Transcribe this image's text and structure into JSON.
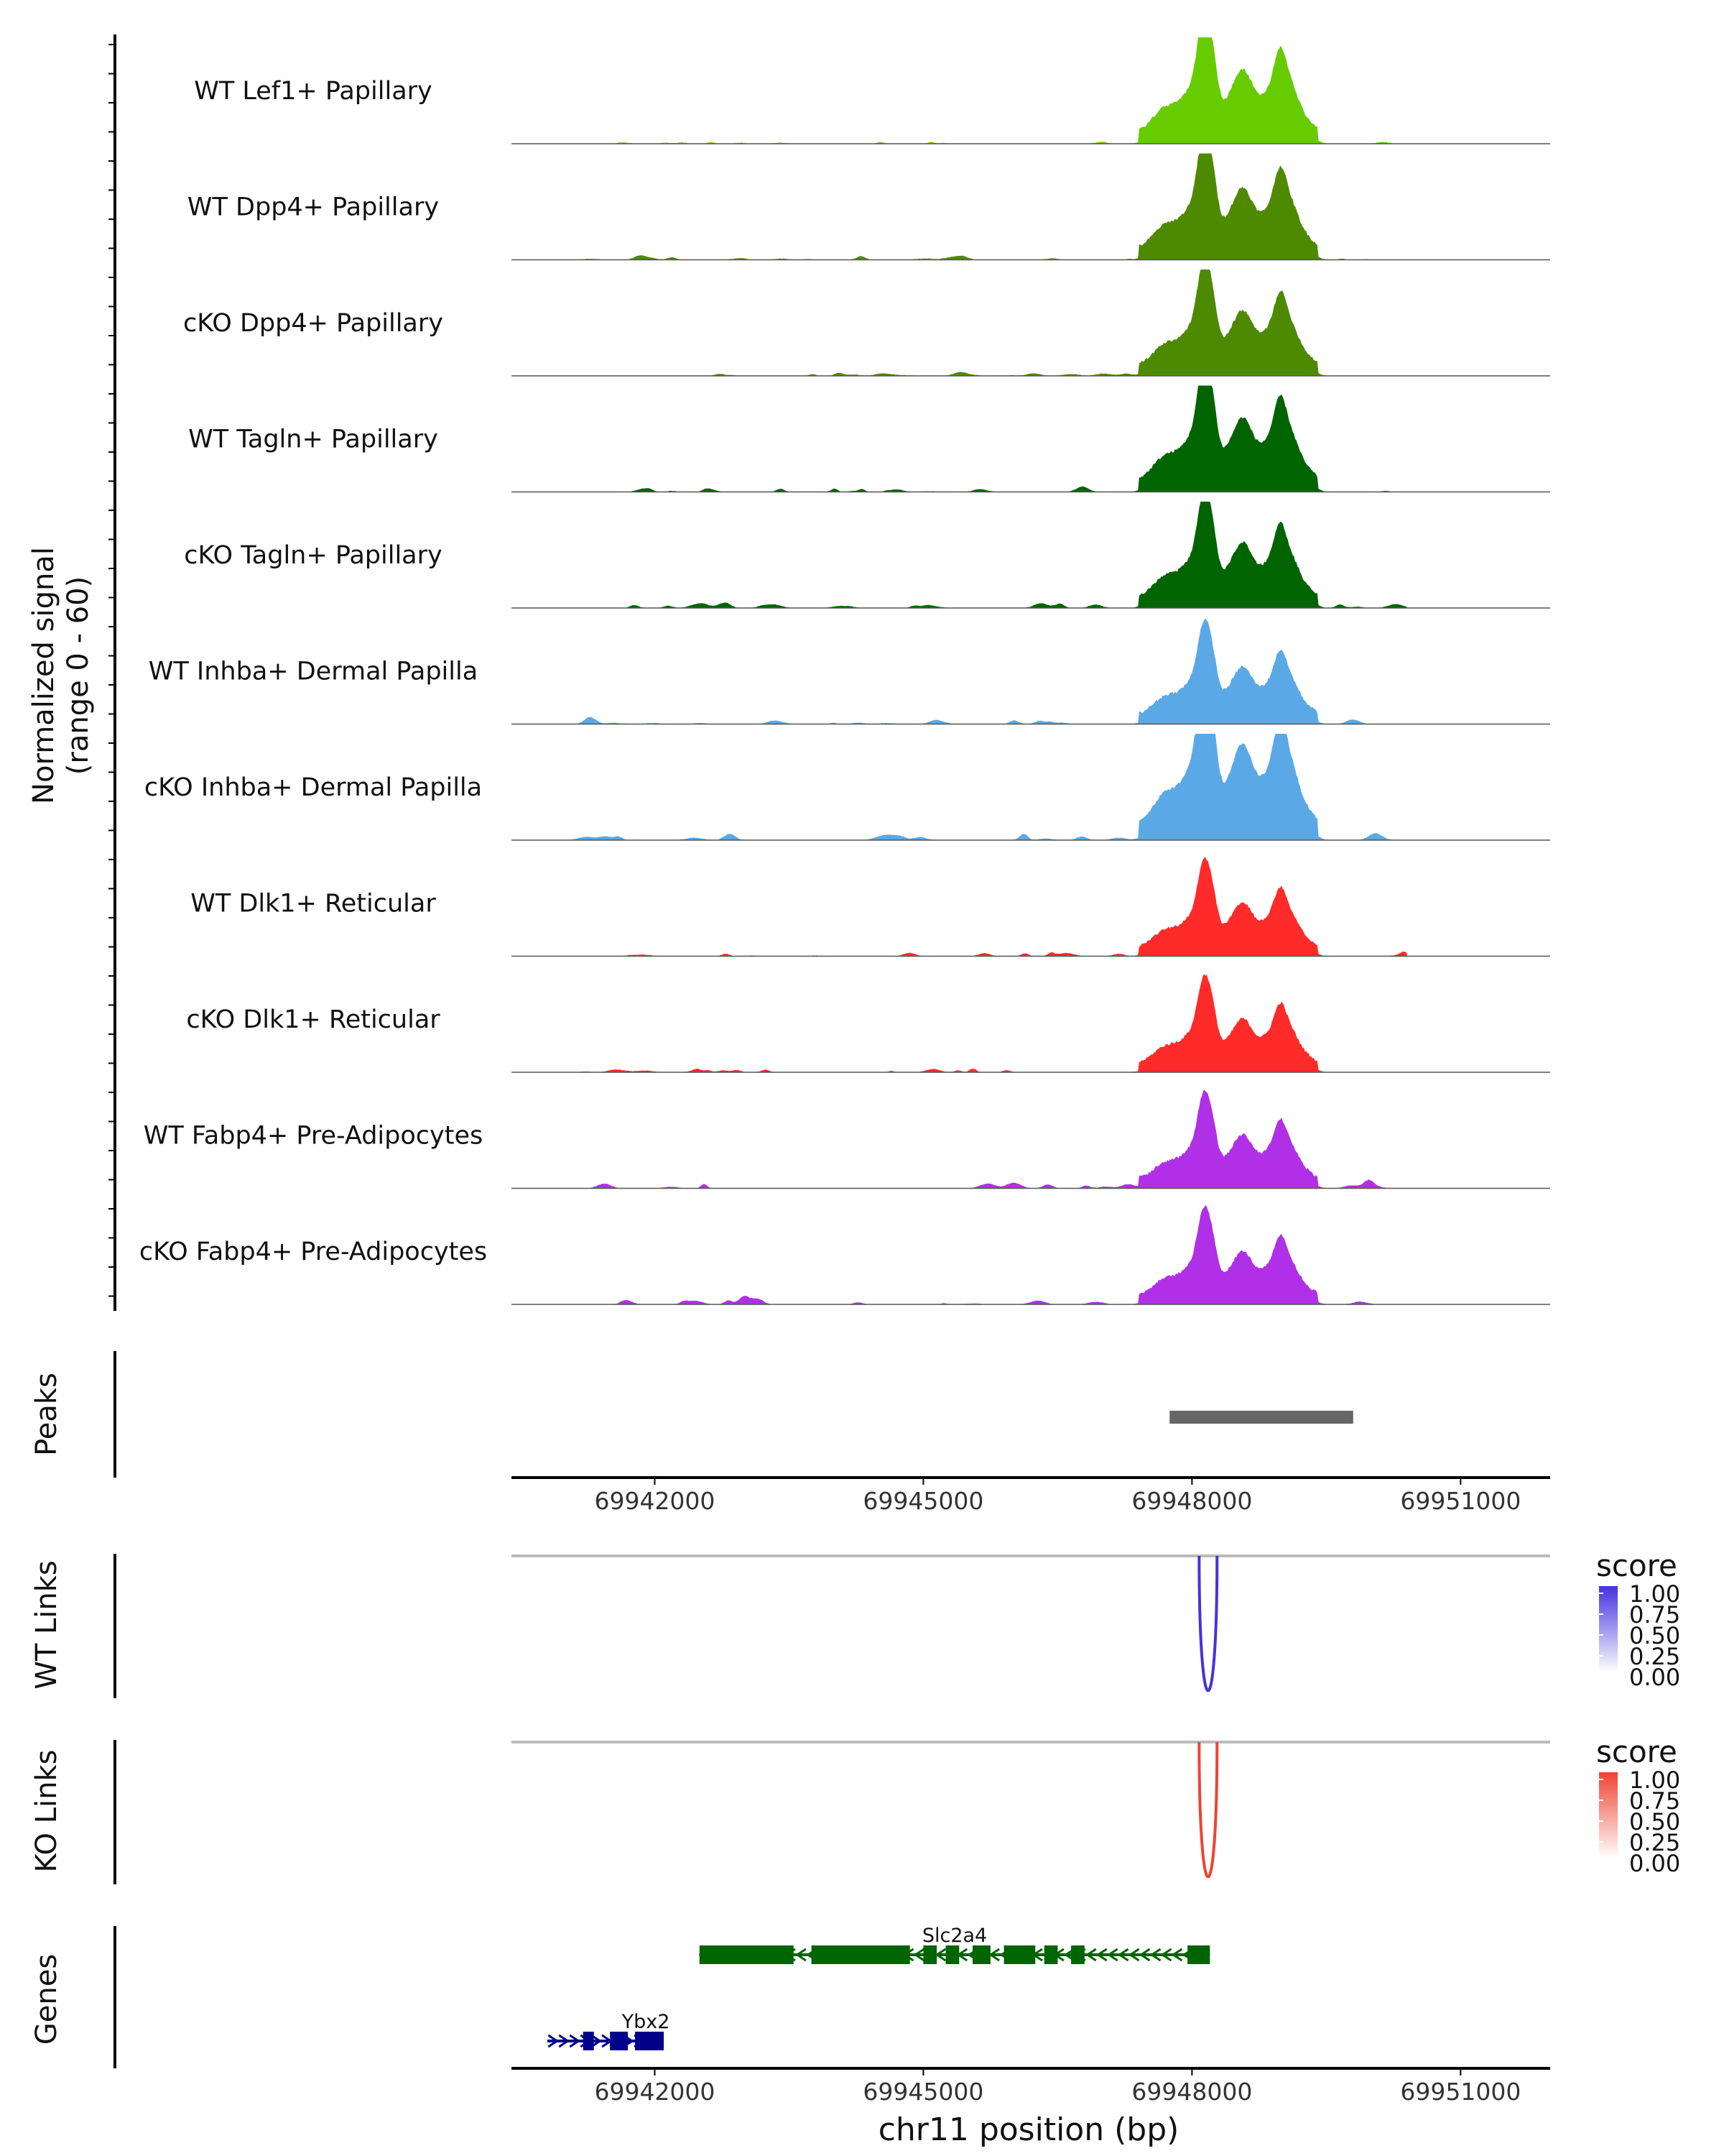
{
  "chart_data": {
    "type": "area",
    "title": "",
    "xlabel": "chr11 position (bp)",
    "ylabel": "Normalized signal (range 0 - 60)",
    "ylabel_lines": [
      "Normalized signal",
      "(range 0 - 60)"
    ],
    "xlim": [
      69940400,
      69952000
    ],
    "ylim": [
      0,
      60
    ],
    "xticks": [
      69942000,
      69945000,
      69948000,
      69951000
    ],
    "xtick_labels": [
      "69942000",
      "69945000",
      "69948000",
      "69951000"
    ],
    "tracks": [
      {
        "label": "WT Lef1+ Papillary",
        "color": "#66cc00",
        "scale": 1.0,
        "bg": 0.25,
        "seed": 1
      },
      {
        "label": "WT Dpp4+ Papillary",
        "color": "#4e8a00",
        "scale": 0.97,
        "bg": 0.5,
        "seed": 2
      },
      {
        "label": "cKO Dpp4+ Papillary",
        "color": "#4e8a00",
        "scale": 0.88,
        "bg": 0.45,
        "seed": 3
      },
      {
        "label": "WT Tagln+ Papillary",
        "color": "#006400",
        "scale": 1.0,
        "bg": 0.55,
        "seed": 4
      },
      {
        "label": "cKO Tagln+ Papillary",
        "color": "#006400",
        "scale": 0.88,
        "bg": 0.7,
        "seed": 5
      },
      {
        "label": "WT Inhba+ Dermal Papilla",
        "color": "#5aa9e6",
        "scale": 0.77,
        "bg": 0.65,
        "seed": 6
      },
      {
        "label": "cKO Inhba+ Dermal Papilla",
        "color": "#5aa9e6",
        "scale": 1.3,
        "bg": 1.1,
        "seed": 7
      },
      {
        "label": "WT Dlk1+ Reticular",
        "color": "#ff2a2a",
        "scale": 0.72,
        "bg": 0.55,
        "seed": 8
      },
      {
        "label": "cKO Dlk1+ Reticular",
        "color": "#ff2a2a",
        "scale": 0.72,
        "bg": 0.55,
        "seed": 9
      },
      {
        "label": "WT Fabp4+ Pre-Adipocytes",
        "color": "#b030e8",
        "scale": 0.72,
        "bg": 1.0,
        "seed": 10
      },
      {
        "label": "cKO Fabp4+ Pre-Adipocytes",
        "color": "#b030e8",
        "scale": 0.72,
        "bg": 0.9,
        "seed": 11
      }
    ],
    "peaks": {
      "label": "Peaks",
      "regions": [
        {
          "start": 69947750,
          "end": 69949800
        }
      ]
    },
    "links": [
      {
        "label": "WT Links",
        "color": "#4433dd",
        "start": 69948080,
        "end": 69948280,
        "score": 1.0
      },
      {
        "label": "KO Links",
        "color": "#ee4433",
        "start": 69948080,
        "end": 69948280,
        "score": 1.0
      }
    ],
    "legend": {
      "title": "score",
      "labels": [
        "1.00",
        "0.75",
        "0.50",
        "0.25",
        "0.00"
      ],
      "position": "right"
    },
    "genes_label": "Genes",
    "genes": [
      {
        "name": "Slc2a4",
        "color": "#006400",
        "strand": "-",
        "start": 69942500,
        "end": 69948200,
        "exons": [
          [
            69942500,
            69943550
          ],
          [
            69943750,
            69944850
          ],
          [
            69945000,
            69945150
          ],
          [
            69945250,
            69945400
          ],
          [
            69945550,
            69945750
          ],
          [
            69945900,
            69946250
          ],
          [
            69946350,
            69946500
          ],
          [
            69946650,
            69946800
          ],
          [
            69947950,
            69948200
          ]
        ]
      },
      {
        "name": "Ybx2",
        "color": "#00008b",
        "strand": "+",
        "start": 69940800,
        "end": 69942100,
        "exons": [
          [
            69941200,
            69941320
          ],
          [
            69941500,
            69941700
          ],
          [
            69941850,
            69941960
          ],
          [
            69942050,
            69942100
          ],
          [
            69941780,
            69942100
          ]
        ]
      }
    ]
  }
}
